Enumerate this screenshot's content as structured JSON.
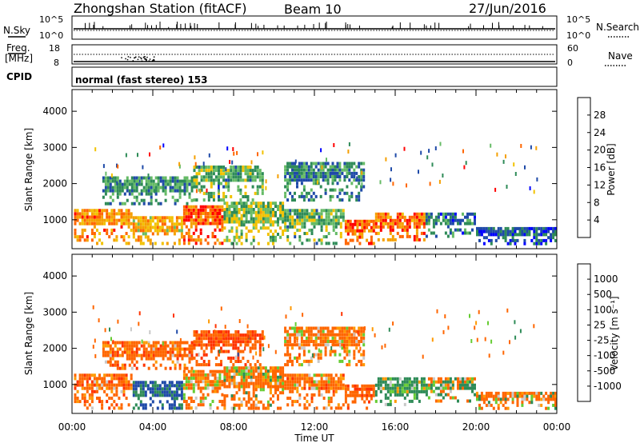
{
  "header": {
    "title": "Zhongshan Station (fitACF)",
    "beam": "Beam 10",
    "date": "27/Jun/2016"
  },
  "status_panels": {
    "nsky_label": "N.Sky",
    "nsky_ticks": [
      "10^5",
      "10^0"
    ],
    "nsearch_label": "N.Search",
    "nsearch_ticks": [
      "10^5",
      "10^0"
    ],
    "freq_label_1": "Freq.",
    "freq_label_2": "[MHz]",
    "freq_ticks": [
      "18",
      "8"
    ],
    "nave_label": "Nave",
    "nave_ticks": [
      "60",
      "0"
    ],
    "cpid_label": "CPID",
    "cpid_value": "normal (fast stereo) 153"
  },
  "colors": {
    "power_scale": [
      "#0000ff",
      "#1f4aa8",
      "#2e8b57",
      "#66bb66",
      "#f2c200",
      "#f5a000",
      "#ff6600",
      "#ff0000"
    ],
    "velocity_scale": [
      "#ff0000",
      "#ff3300",
      "#ff6600",
      "#ff9900",
      "#ffcc33",
      "#c8c8c8",
      "#66cc33",
      "#2e8b57",
      "#1f4aa8",
      "#0000ff"
    ],
    "ground_scatter": "#909090"
  },
  "chart_data": [
    {
      "type": "heatmap",
      "panel": "power",
      "ylabel": "Slant Range [km]",
      "yticks": [
        1000,
        2000,
        3000,
        4000
      ],
      "ylim": [
        200,
        4600
      ],
      "xlabel": "Time UT",
      "xticks": [
        "00:00",
        "04:00",
        "08:00",
        "12:00",
        "16:00",
        "20:00",
        "00:00"
      ],
      "xlim_hours": [
        0,
        24
      ],
      "colorbar": {
        "label": "Power [dB]",
        "ticks": [
          "28",
          "24",
          "20",
          "16",
          "12",
          "8",
          "4"
        ],
        "range": [
          0,
          30
        ]
      },
      "scatter_regions": [
        {
          "t0": 0.1,
          "t1": 3.0,
          "r0": 300,
          "r1": 1300,
          "level": 22
        },
        {
          "t0": 3.0,
          "t1": 5.5,
          "r0": 300,
          "r1": 1100,
          "level": 19
        },
        {
          "t0": 5.5,
          "t1": 7.5,
          "r0": 300,
          "r1": 1400,
          "level": 25
        },
        {
          "t0": 7.5,
          "t1": 10.5,
          "r0": 300,
          "r1": 1500,
          "level": 14
        },
        {
          "t0": 10.5,
          "t1": 13.5,
          "r0": 300,
          "r1": 1300,
          "level": 12
        },
        {
          "t0": 13.5,
          "t1": 15.0,
          "r0": 300,
          "r1": 1000,
          "level": 24
        },
        {
          "t0": 15.0,
          "t1": 17.5,
          "r0": 400,
          "r1": 1200,
          "level": 23
        },
        {
          "t0": 17.5,
          "t1": 20.0,
          "r0": 500,
          "r1": 1200,
          "level": 8
        },
        {
          "t0": 20.0,
          "t1": 24.0,
          "r0": 300,
          "r1": 800,
          "level": 6
        },
        {
          "t0": 1.5,
          "t1": 6.0,
          "r0": 1400,
          "r1": 2200,
          "level": 10
        },
        {
          "t0": 6.0,
          "t1": 9.5,
          "r0": 1500,
          "r1": 2500,
          "level": 12
        },
        {
          "t0": 10.5,
          "t1": 14.5,
          "r0": 1500,
          "r1": 2600,
          "level": 9
        }
      ]
    },
    {
      "type": "heatmap",
      "panel": "velocity",
      "ylabel": "Slant Range [km]",
      "yticks": [
        1000,
        2000,
        3000,
        4000
      ],
      "ylim": [
        200,
        4600
      ],
      "xlabel": "Time UT",
      "xticks": [
        "00:00",
        "04:00",
        "08:00",
        "12:00",
        "16:00",
        "20:00",
        "00:00"
      ],
      "xlim_hours": [
        0,
        24
      ],
      "colorbar": {
        "label": "Velocity [m s⁻¹]",
        "ticks": [
          "1000",
          "500",
          "100",
          "25",
          "-25",
          "-100",
          "-500",
          "-1000"
        ],
        "range": [
          -1200,
          1200
        ]
      },
      "scatter_regions": [
        {
          "t0": 0.1,
          "t1": 3.0,
          "r0": 300,
          "r1": 1300,
          "level": -300
        },
        {
          "t0": 3.0,
          "t1": 5.5,
          "r0": 300,
          "r1": 1100,
          "level": 600
        },
        {
          "t0": 5.5,
          "t1": 7.5,
          "r0": 300,
          "r1": 1400,
          "level": -200
        },
        {
          "t0": 7.5,
          "t1": 10.5,
          "r0": 300,
          "r1": 1500,
          "level": -150
        },
        {
          "t0": 10.5,
          "t1": 13.5,
          "r0": 300,
          "r1": 1300,
          "level": -250
        },
        {
          "t0": 13.5,
          "t1": 15.0,
          "r0": 300,
          "r1": 1000,
          "level": -400
        },
        {
          "t0": 15.0,
          "t1": 17.5,
          "r0": 400,
          "r1": 1200,
          "level": 200
        },
        {
          "t0": 17.5,
          "t1": 20.0,
          "r0": 500,
          "r1": 1200,
          "level": 60
        },
        {
          "t0": 20.0,
          "t1": 24.0,
          "r0": 300,
          "r1": 800,
          "level": -150
        },
        {
          "t0": 1.5,
          "t1": 6.0,
          "r0": 1400,
          "r1": 2200,
          "level": -300
        },
        {
          "t0": 6.0,
          "t1": 9.5,
          "r0": 1500,
          "r1": 2500,
          "level": -500
        },
        {
          "t0": 10.5,
          "t1": 14.5,
          "r0": 1500,
          "r1": 2600,
          "level": -200
        }
      ]
    }
  ]
}
